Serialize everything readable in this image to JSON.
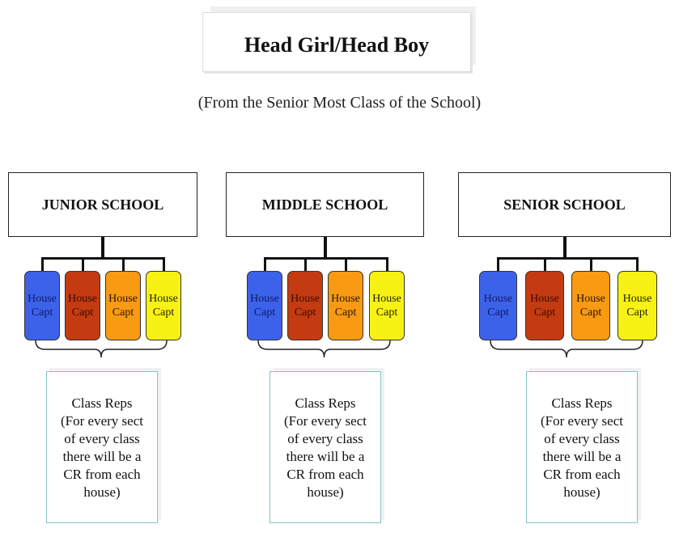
{
  "title": "Head Girl/Head Boy",
  "subtitle": "(From the Senior Most Class of the School)",
  "house_colors": [
    "#3d62ea",
    "#c43b12",
    "#f89a12",
    "#f8f214"
  ],
  "house_text_colors": [
    "#0d1a66",
    "#3a0a00",
    "#2a1400",
    "#222200"
  ],
  "schools": [
    {
      "name": "JUNIOR SCHOOL",
      "captains": [
        {
          "line1": "House",
          "line2": "Capt"
        },
        {
          "line1": "House",
          "line2": "Capt"
        },
        {
          "line1": "House",
          "line2": "Capt"
        },
        {
          "line1": "House",
          "line2": "Capt"
        }
      ],
      "class_reps": [
        "Class Reps",
        "(For every sect",
        "of every class",
        "there will be a",
        "CR from each",
        "house)"
      ]
    },
    {
      "name": "MIDDLE SCHOOL",
      "captains": [
        {
          "line1": "House",
          "line2": "Capt"
        },
        {
          "line1": "House",
          "line2": "Capt"
        },
        {
          "line1": "House",
          "line2": "Capt"
        },
        {
          "line1": "House",
          "line2": "Capt"
        }
      ],
      "class_reps": [
        "Class Reps",
        "(For every sect",
        "of every class",
        "there will be a",
        "CR from each",
        "house)"
      ]
    },
    {
      "name": "SENIOR SCHOOL",
      "captains": [
        {
          "line1": "House",
          "line2": "Capt"
        },
        {
          "line1": "House",
          "line2": "Capt"
        },
        {
          "line1": "House",
          "line2": "Capt"
        },
        {
          "line1": "House",
          "line2": "Capt"
        }
      ],
      "class_reps": [
        "Class Reps",
        "(For every sect",
        "of every class",
        "there will be a",
        "CR from each",
        "house)"
      ]
    }
  ]
}
